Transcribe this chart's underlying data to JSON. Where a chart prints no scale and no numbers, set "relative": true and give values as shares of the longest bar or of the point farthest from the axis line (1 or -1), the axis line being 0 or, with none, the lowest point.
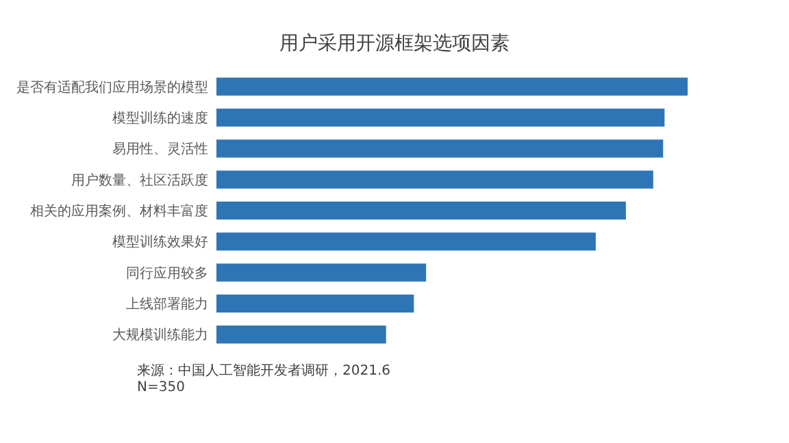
{
  "chart_data": {
    "type": "bar",
    "orientation": "horizontal",
    "relative": true,
    "title": "用户采用开源框架选项因素",
    "categories": [
      "是否有适配我们应用场景的模型",
      "模型训练的速度",
      "易用性、灵活性",
      "用户数量、社区活跃度",
      "相关的应用案例、材料丰富度",
      "模型训练效果好",
      "同行应用较多",
      "上线部署能力",
      "大规模训练能力"
    ],
    "values": [
      1,
      0.951,
      0.948,
      0.927,
      0.869,
      0.805,
      0.445,
      0.419,
      0.36
    ],
    "color": "#2e75b6",
    "annotations": [
      "来源：中国人工智能开发者调研，2021.6",
      "N=350"
    ]
  }
}
